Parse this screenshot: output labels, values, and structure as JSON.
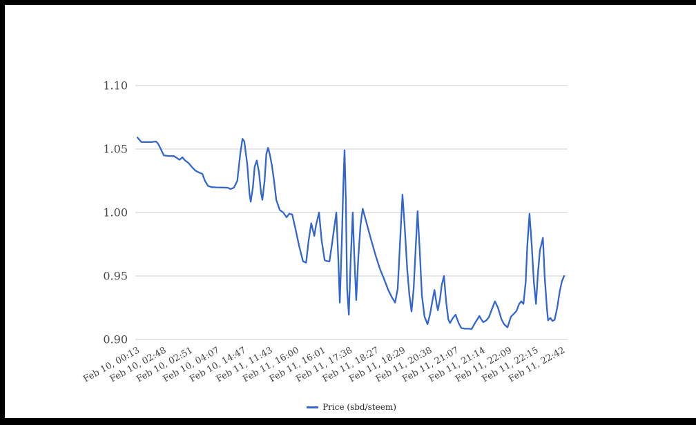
{
  "chart_data": {
    "type": "line",
    "title": "",
    "xlabel": "",
    "ylabel": "",
    "ylim": [
      0.9,
      1.1
    ],
    "grid": "horizontal",
    "x_label_rotation_deg": -29,
    "y_ticks": [
      1.1,
      1.05,
      1.0,
      0.95,
      0.9
    ],
    "y_tick_labels": [
      "1.10",
      "1.05",
      "1.00",
      "0.95",
      "0.90"
    ],
    "x_tick_labels": [
      "Feb 10, 00:13",
      "Feb 10, 02:48",
      "Feb 10, 02:51",
      "Feb 10, 04:07",
      "Feb 10, 14:47",
      "Feb 11, 11:43",
      "Feb 11, 16:00",
      "Feb 11, 16:01",
      "Feb 11, 17:38",
      "Feb 11, 18:27",
      "Feb 11, 18:29",
      "Feb 11, 20:38",
      "Feb 11, 21:07",
      "Feb 11, 21:14",
      "Feb 11, 22:09",
      "Feb 11, 22:15",
      "Feb 11, 22:42"
    ],
    "legend": {
      "position": "bottom",
      "label": "Price (sbd/steem)"
    },
    "colors": {
      "line": "#3366cc",
      "grid": "#cccccc",
      "axis_text": "#444444",
      "legend_text": "#222222",
      "background": "#ffffff",
      "frame": "#000000"
    },
    "series": [
      {
        "name": "Price (sbd/steem)",
        "color": "#3366cc",
        "points": [
          [
            0.005,
            1.059
          ],
          [
            0.01,
            1.057
          ],
          [
            0.014,
            1.0555
          ],
          [
            0.026,
            1.0555
          ],
          [
            0.038,
            1.0555
          ],
          [
            0.048,
            1.056
          ],
          [
            0.053,
            1.054
          ],
          [
            0.059,
            1.05
          ],
          [
            0.066,
            1.045
          ],
          [
            0.077,
            1.0445
          ],
          [
            0.089,
            1.0445
          ],
          [
            0.096,
            1.043
          ],
          [
            0.102,
            1.0415
          ],
          [
            0.109,
            1.0435
          ],
          [
            0.115,
            1.041
          ],
          [
            0.123,
            1.039
          ],
          [
            0.133,
            1.035
          ],
          [
            0.139,
            1.033
          ],
          [
            0.147,
            1.0315
          ],
          [
            0.155,
            1.0305
          ],
          [
            0.161,
            1.025
          ],
          [
            0.168,
            1.021
          ],
          [
            0.176,
            1.02
          ],
          [
            0.188,
            1.0198
          ],
          [
            0.201,
            1.0197
          ],
          [
            0.214,
            1.0195
          ],
          [
            0.22,
            1.0185
          ],
          [
            0.228,
            1.0195
          ],
          [
            0.236,
            1.025
          ],
          [
            0.243,
            1.047
          ],
          [
            0.248,
            1.058
          ],
          [
            0.252,
            1.056
          ],
          [
            0.259,
            1.038
          ],
          [
            0.264,
            1.015
          ],
          [
            0.267,
            1.0085
          ],
          [
            0.272,
            1.02
          ],
          [
            0.276,
            1.036
          ],
          [
            0.281,
            1.041
          ],
          [
            0.286,
            1.032
          ],
          [
            0.291,
            1.015
          ],
          [
            0.294,
            1.01
          ],
          [
            0.299,
            1.025
          ],
          [
            0.303,
            1.046
          ],
          [
            0.307,
            1.051
          ],
          [
            0.311,
            1.046
          ],
          [
            0.316,
            1.037
          ],
          [
            0.321,
            1.025
          ],
          [
            0.326,
            1.01
          ],
          [
            0.334,
            1.002
          ],
          [
            0.342,
            1.0
          ],
          [
            0.35,
            0.9962
          ],
          [
            0.356,
            0.999
          ],
          [
            0.363,
            0.9984
          ],
          [
            0.371,
            0.9864
          ],
          [
            0.379,
            0.9734
          ],
          [
            0.388,
            0.9615
          ],
          [
            0.395,
            0.9605
          ],
          [
            0.401,
            0.978
          ],
          [
            0.407,
            0.9915
          ],
          [
            0.414,
            0.9815
          ],
          [
            0.418,
            0.99
          ],
          [
            0.425,
            1.0
          ],
          [
            0.431,
            0.978
          ],
          [
            0.438,
            0.9625
          ],
          [
            0.442,
            0.9618
          ],
          [
            0.449,
            0.9614
          ],
          [
            0.455,
            0.975
          ],
          [
            0.46,
            0.988
          ],
          [
            0.465,
            1.0
          ],
          [
            0.47,
            0.96
          ],
          [
            0.473,
            0.929
          ],
          [
            0.478,
            0.98
          ],
          [
            0.481,
            1.02
          ],
          [
            0.484,
            1.049
          ],
          [
            0.487,
            1.01
          ],
          [
            0.49,
            0.94
          ],
          [
            0.494,
            0.9195
          ],
          [
            0.498,
            0.96
          ],
          [
            0.503,
            1.0
          ],
          [
            0.506,
            0.97
          ],
          [
            0.511,
            0.931
          ],
          [
            0.516,
            0.965
          ],
          [
            0.521,
            0.99
          ],
          [
            0.526,
            1.003
          ],
          [
            0.534,
            0.993
          ],
          [
            0.545,
            0.979
          ],
          [
            0.556,
            0.966
          ],
          [
            0.566,
            0.9555
          ],
          [
            0.575,
            0.948
          ],
          [
            0.585,
            0.939
          ],
          [
            0.594,
            0.933
          ],
          [
            0.601,
            0.929
          ],
          [
            0.607,
            0.94
          ],
          [
            0.613,
            0.98
          ],
          [
            0.618,
            1.014
          ],
          [
            0.623,
            0.99
          ],
          [
            0.629,
            0.955
          ],
          [
            0.634,
            0.935
          ],
          [
            0.639,
            0.922
          ],
          [
            0.644,
            0.94
          ],
          [
            0.649,
            0.975
          ],
          [
            0.653,
            1.001
          ],
          [
            0.658,
            0.97
          ],
          [
            0.663,
            0.935
          ],
          [
            0.669,
            0.918
          ],
          [
            0.676,
            0.912
          ],
          [
            0.682,
            0.92
          ],
          [
            0.687,
            0.93
          ],
          [
            0.692,
            0.939
          ],
          [
            0.697,
            0.928
          ],
          [
            0.7,
            0.923
          ],
          [
            0.705,
            0.932
          ],
          [
            0.709,
            0.943
          ],
          [
            0.714,
            0.95
          ],
          [
            0.719,
            0.93
          ],
          [
            0.724,
            0.916
          ],
          [
            0.728,
            0.913
          ],
          [
            0.735,
            0.917
          ],
          [
            0.741,
            0.9195
          ],
          [
            0.748,
            0.913
          ],
          [
            0.754,
            0.909
          ],
          [
            0.762,
            0.9085
          ],
          [
            0.77,
            0.9085
          ],
          [
            0.778,
            0.9082
          ],
          [
            0.786,
            0.913
          ],
          [
            0.796,
            0.9185
          ],
          [
            0.8,
            0.916
          ],
          [
            0.805,
            0.9136
          ],
          [
            0.812,
            0.915
          ],
          [
            0.818,
            0.9175
          ],
          [
            0.824,
            0.923
          ],
          [
            0.832,
            0.93
          ],
          [
            0.839,
            0.925
          ],
          [
            0.847,
            0.916
          ],
          [
            0.853,
            0.912
          ],
          [
            0.861,
            0.9095
          ],
          [
            0.869,
            0.918
          ],
          [
            0.875,
            0.92
          ],
          [
            0.882,
            0.9225
          ],
          [
            0.888,
            0.928
          ],
          [
            0.893,
            0.93
          ],
          [
            0.898,
            0.928
          ],
          [
            0.903,
            0.945
          ],
          [
            0.907,
            0.975
          ],
          [
            0.912,
            0.999
          ],
          [
            0.917,
            0.975
          ],
          [
            0.922,
            0.945
          ],
          [
            0.927,
            0.928
          ],
          [
            0.931,
            0.95
          ],
          [
            0.936,
            0.97
          ],
          [
            0.943,
            0.98
          ],
          [
            0.947,
            0.95
          ],
          [
            0.952,
            0.925
          ],
          [
            0.955,
            0.915
          ],
          [
            0.96,
            0.917
          ],
          [
            0.965,
            0.9145
          ],
          [
            0.97,
            0.9155
          ],
          [
            0.976,
            0.925
          ],
          [
            0.982,
            0.938
          ],
          [
            0.987,
            0.946
          ],
          [
            0.992,
            0.95
          ]
        ]
      }
    ]
  }
}
